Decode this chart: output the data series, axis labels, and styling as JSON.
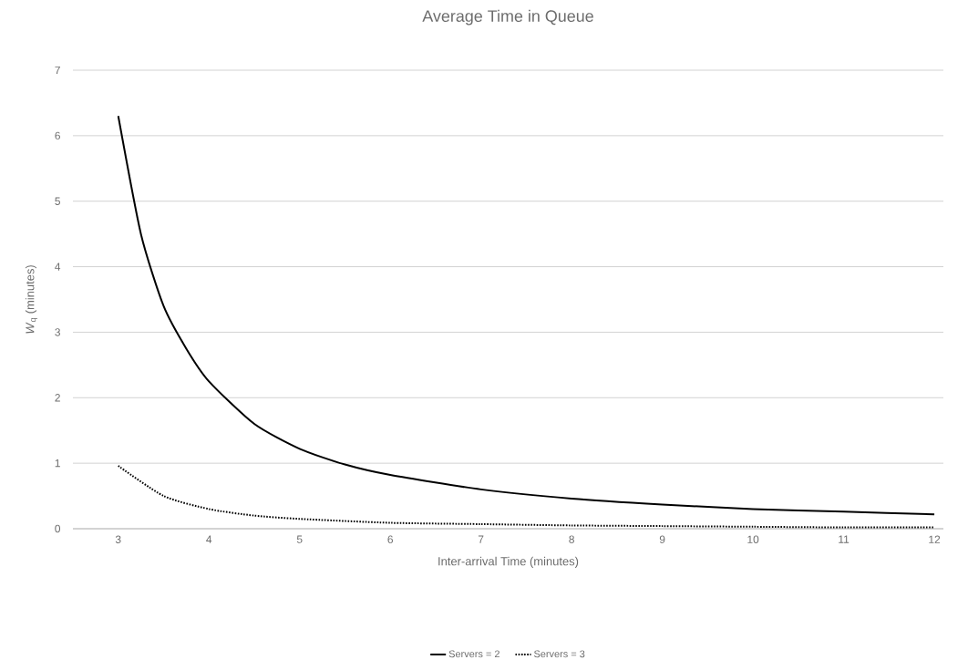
{
  "chart_data": {
    "type": "line",
    "title": "Average Time in Queue",
    "xlabel": "Inter-arrival Time (minutes)",
    "ylabel": "*W*$_{q}$ (minutes)",
    "xlim": [
      2.5,
      12.1
    ],
    "ylim": [
      0,
      7
    ],
    "xticks": [
      3,
      4,
      5,
      6,
      7,
      8,
      9,
      10,
      11,
      12
    ],
    "yticks": [
      0,
      1,
      2,
      3,
      4,
      5,
      6,
      7
    ],
    "grid": "y",
    "legend": "bottom",
    "marker": "none",
    "series": [
      {
        "name": "Servers = 2",
        "color": "#000000",
        "line_style": "solid",
        "x": [
          3,
          3.25,
          3.5,
          3.75,
          4,
          4.5,
          5,
          5.5,
          6,
          7,
          8,
          9,
          10,
          11,
          12
        ],
        "values": [
          6.3,
          4.5,
          3.4,
          2.75,
          2.25,
          1.6,
          1.22,
          0.98,
          0.82,
          0.6,
          0.46,
          0.37,
          0.3,
          0.26,
          0.22
        ]
      },
      {
        "name": "Servers = 3",
        "color": "#000000",
        "line_style": "dotted",
        "x": [
          3,
          3.5,
          4,
          4.5,
          5,
          6,
          7,
          8,
          9,
          10,
          11,
          12
        ],
        "values": [
          0.96,
          0.5,
          0.3,
          0.2,
          0.15,
          0.09,
          0.07,
          0.05,
          0.04,
          0.03,
          0.02,
          0.02
        ]
      }
    ]
  }
}
